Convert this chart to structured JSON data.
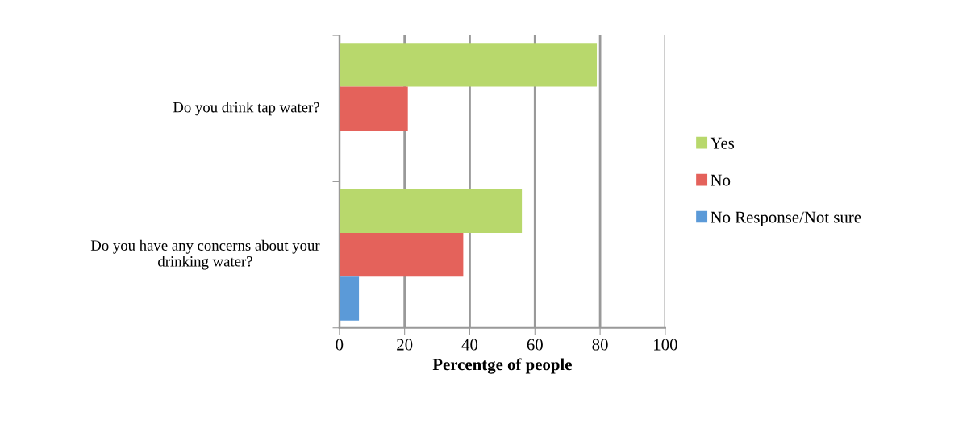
{
  "chart_data": {
    "type": "bar",
    "orientation": "horizontal",
    "xlabel": "Percentge of people",
    "categories": [
      "Do you drink tap water?",
      "Do you have any concerns about your drinking water?"
    ],
    "series": [
      {
        "name": "Yes",
        "color": "#b8d86c",
        "values": [
          79,
          56
        ]
      },
      {
        "name": "No",
        "color": "#e4625b",
        "values": [
          21,
          38
        ]
      },
      {
        "name": "No Response/Not sure",
        "color": "#5b9ad8",
        "values": [
          0,
          6
        ]
      }
    ],
    "xlim": [
      0,
      100
    ],
    "xticks": [
      0,
      20,
      40,
      60,
      80,
      100
    ],
    "grid": "x",
    "legend": "right"
  }
}
